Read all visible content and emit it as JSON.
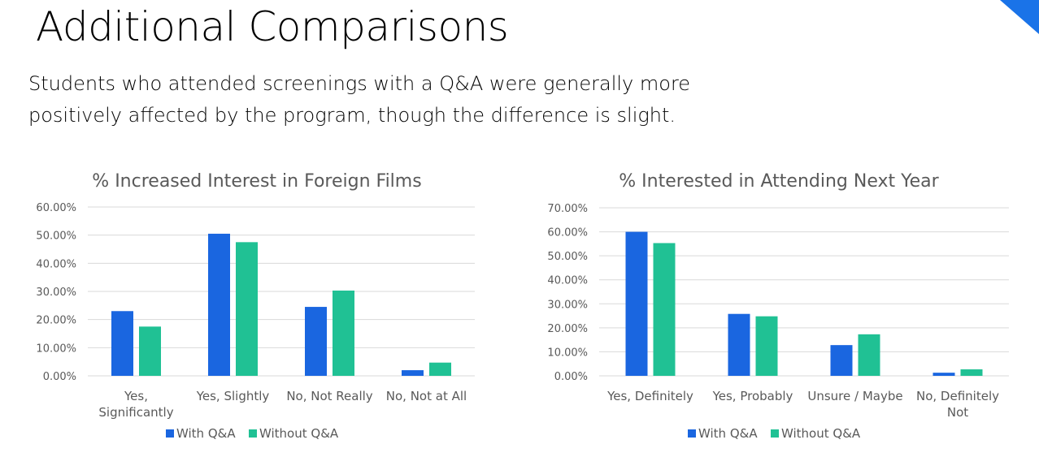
{
  "slide": {
    "title": "Additional Comparisons",
    "subtitle": "Students who attended screenings with a Q&A were generally more positively affected by the program, though the difference is slight."
  },
  "colors": {
    "with_qa": "#1a66e0",
    "without_qa": "#20c194",
    "accent": "#1a73e8"
  },
  "chart_data": [
    {
      "type": "bar",
      "title": "% Increased Interest in Foreign Films",
      "categories": [
        [
          "Yes,",
          "Significantly"
        ],
        [
          "Yes, Slightly"
        ],
        [
          "No, Not Really"
        ],
        [
          "No, Not at All"
        ]
      ],
      "series": [
        {
          "name": "With Q&A",
          "values": [
            23.0,
            50.5,
            24.5,
            2.0
          ]
        },
        {
          "name": "Without Q&A",
          "values": [
            17.5,
            47.5,
            30.3,
            4.7
          ]
        }
      ],
      "ylim": [
        0,
        60
      ],
      "yticks": [
        "0.00%",
        "10.00%",
        "20.00%",
        "30.00%",
        "40.00%",
        "50.00%",
        "60.00%"
      ],
      "xlabel": "",
      "ylabel": "",
      "legend": "bottom"
    },
    {
      "type": "bar",
      "title": "% Interested in Attending Next Year",
      "categories": [
        [
          "Yes, Definitely"
        ],
        [
          "Yes, Probably"
        ],
        [
          "Unsure / Maybe"
        ],
        [
          "No, Definitely",
          "Not"
        ]
      ],
      "series": [
        {
          "name": "With Q&A",
          "values": [
            60.0,
            25.8,
            12.8,
            1.3
          ]
        },
        {
          "name": "Without Q&A",
          "values": [
            55.3,
            24.8,
            17.3,
            2.7
          ]
        }
      ],
      "ylim": [
        0,
        70
      ],
      "yticks": [
        "0.00%",
        "10.00%",
        "20.00%",
        "30.00%",
        "40.00%",
        "50.00%",
        "60.00%",
        "70.00%"
      ],
      "xlabel": "",
      "ylabel": "",
      "legend": "bottom"
    }
  ]
}
